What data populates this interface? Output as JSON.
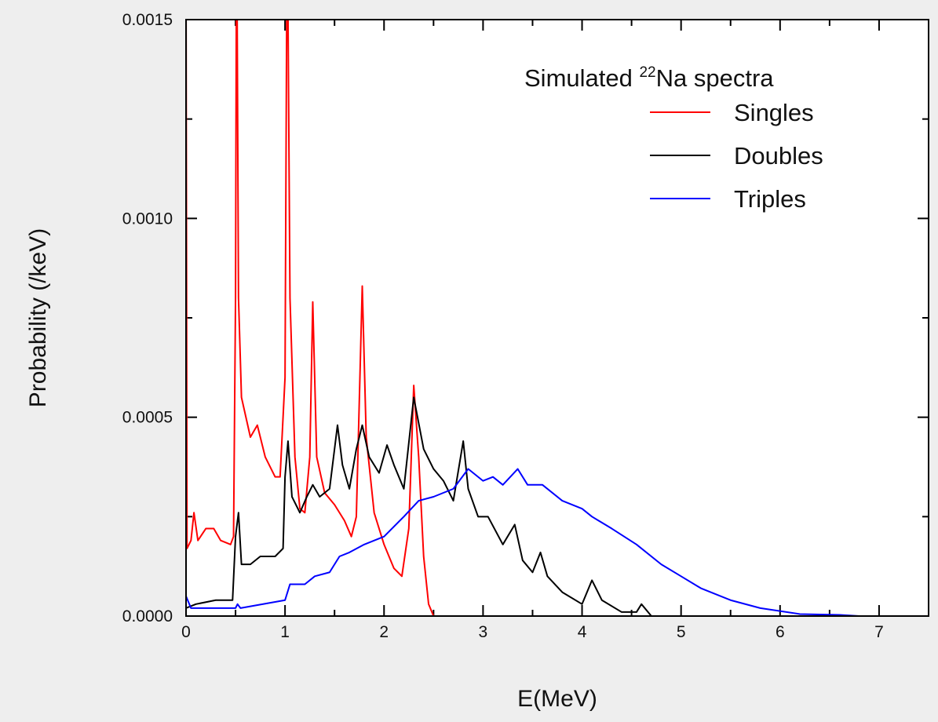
{
  "chart_data": {
    "type": "line",
    "legend_title": {
      "prefix": "Simulated",
      "superscript": "22",
      "suffix": "Na spectra"
    },
    "xlabel": "E(MeV)",
    "ylabel": "Probability (/keV)",
    "xlim": [
      0,
      7.5
    ],
    "ylim": [
      0,
      0.0015
    ],
    "xticks": [
      0,
      1,
      2,
      3,
      4,
      5,
      6,
      7
    ],
    "xminorticks": [
      0.5,
      1.5,
      2.5,
      3.5,
      4.5,
      5.5,
      6.5,
      7.5
    ],
    "yticks": [
      {
        "value": 0,
        "label": "0.0000"
      },
      {
        "value": 0.0005,
        "label": "0.0005"
      },
      {
        "value": 0.001,
        "label": "0.0010"
      },
      {
        "value": 0.0015,
        "label": "0.0015"
      }
    ],
    "yminorticks": [
      0.00025,
      0.00075,
      0.00125
    ],
    "legend": "top-right",
    "series": [
      {
        "name": "Singles",
        "color": "#ff0000",
        "x": [
          0,
          0.01,
          0.05,
          0.08,
          0.12,
          0.2,
          0.28,
          0.35,
          0.45,
          0.48,
          0.5,
          0.511,
          0.53,
          0.56,
          0.65,
          0.72,
          0.8,
          0.9,
          0.95,
          1.0,
          1.022,
          1.05,
          1.1,
          1.15,
          1.2,
          1.25,
          1.28,
          1.32,
          1.4,
          1.5,
          1.6,
          1.67,
          1.72,
          1.78,
          1.82,
          1.9,
          2.0,
          2.1,
          2.18,
          2.25,
          2.3,
          2.35,
          2.4,
          2.45,
          2.5,
          2.6
        ],
        "values": [
          0.0016,
          0.00017,
          0.00019,
          0.00026,
          0.00019,
          0.00022,
          0.00022,
          0.00019,
          0.00018,
          0.0002,
          0.0008,
          0.0018,
          0.0008,
          0.00055,
          0.00045,
          0.00048,
          0.0004,
          0.00035,
          0.00035,
          0.0006,
          0.0018,
          0.0008,
          0.0004,
          0.00027,
          0.00026,
          0.0004,
          0.00079,
          0.0004,
          0.00031,
          0.00028,
          0.00024,
          0.0002,
          0.00025,
          0.00083,
          0.00045,
          0.00026,
          0.00018,
          0.00012,
          0.0001,
          0.00022,
          0.00058,
          0.0004,
          0.00015,
          3e-05,
          0,
          0
        ]
      },
      {
        "name": "Doubles",
        "color": "#000000",
        "x": [
          0,
          0.1,
          0.3,
          0.47,
          0.5,
          0.53,
          0.56,
          0.65,
          0.75,
          0.9,
          0.98,
          1.0,
          1.03,
          1.07,
          1.15,
          1.22,
          1.28,
          1.35,
          1.45,
          1.53,
          1.58,
          1.65,
          1.72,
          1.78,
          1.85,
          1.95,
          2.03,
          2.1,
          2.2,
          2.3,
          2.4,
          2.5,
          2.6,
          2.7,
          2.8,
          2.85,
          2.95,
          3.05,
          3.2,
          3.32,
          3.4,
          3.5,
          3.58,
          3.65,
          3.8,
          4.0,
          4.1,
          4.2,
          4.4,
          4.55,
          4.6,
          4.7,
          4.8
        ],
        "values": [
          2e-05,
          3e-05,
          4e-05,
          4e-05,
          0.0002,
          0.00026,
          0.00013,
          0.00013,
          0.00015,
          0.00015,
          0.00017,
          0.00035,
          0.00044,
          0.0003,
          0.00026,
          0.0003,
          0.00033,
          0.0003,
          0.00032,
          0.00048,
          0.00038,
          0.00032,
          0.00042,
          0.00048,
          0.0004,
          0.00036,
          0.00043,
          0.00038,
          0.00032,
          0.00055,
          0.00042,
          0.00037,
          0.00034,
          0.00029,
          0.00044,
          0.00032,
          0.00025,
          0.00025,
          0.00018,
          0.00023,
          0.00014,
          0.00011,
          0.00016,
          0.0001,
          6e-05,
          3e-05,
          9e-05,
          4e-05,
          1e-05,
          1e-05,
          3e-05,
          0,
          0
        ]
      },
      {
        "name": "Triples",
        "color": "#0000ff",
        "x": [
          0,
          0.05,
          0.5,
          0.52,
          0.55,
          1.0,
          1.05,
          1.2,
          1.3,
          1.45,
          1.55,
          1.65,
          1.8,
          2.0,
          2.2,
          2.35,
          2.5,
          2.7,
          2.85,
          3.0,
          3.1,
          3.2,
          3.35,
          3.45,
          3.6,
          3.8,
          4.0,
          4.1,
          4.3,
          4.55,
          4.8,
          5.0,
          5.2,
          5.5,
          5.8,
          6.2,
          6.6,
          6.8,
          7.5
        ],
        "values": [
          5e-05,
          2e-05,
          2e-05,
          3e-05,
          2e-05,
          4e-05,
          8e-05,
          8e-05,
          0.0001,
          0.00011,
          0.00015,
          0.00016,
          0.00018,
          0.0002,
          0.00025,
          0.00029,
          0.0003,
          0.00032,
          0.00037,
          0.00034,
          0.00035,
          0.00033,
          0.00037,
          0.00033,
          0.00033,
          0.00029,
          0.00027,
          0.00025,
          0.00022,
          0.00018,
          0.00013,
          0.0001,
          7e-05,
          4e-05,
          2e-05,
          5e-06,
          3e-06,
          0,
          0
        ]
      }
    ]
  }
}
